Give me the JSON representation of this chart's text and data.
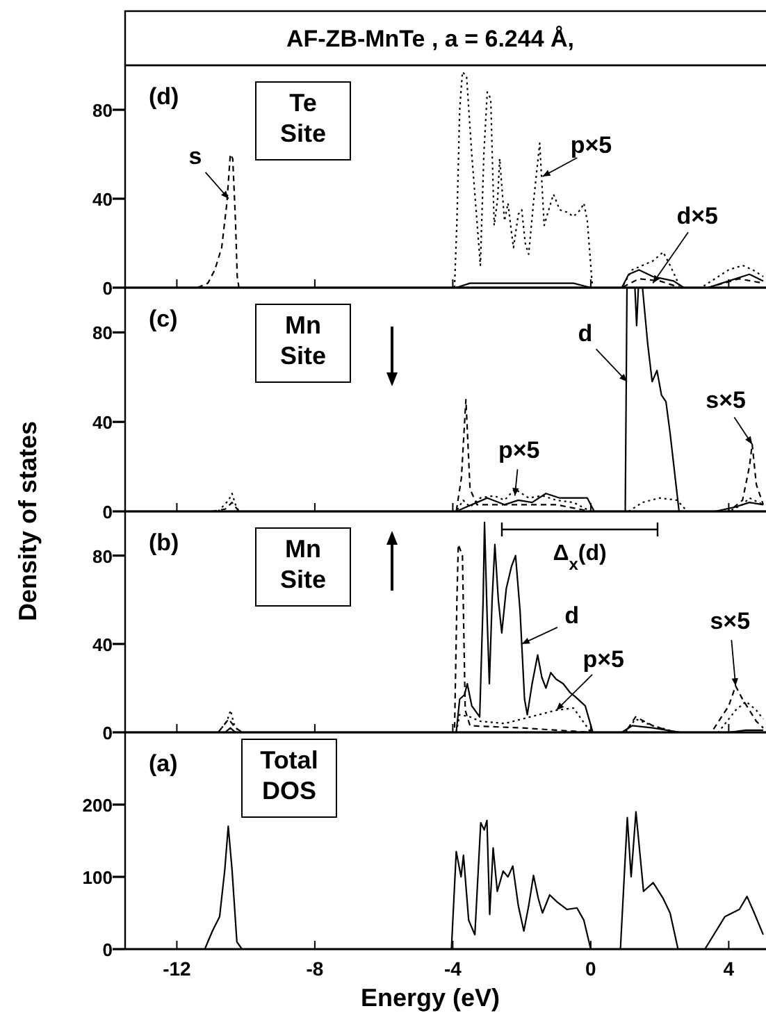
{
  "chart_data": [
    {
      "type": "line",
      "title": "AF-ZB-MnTe , a = 6.244 Å,",
      "xlim": [
        -13.5,
        5
      ],
      "ylim": [
        0,
        100
      ],
      "yticks": [
        0,
        40,
        80
      ],
      "tick_labels": "y",
      "series": [
        {
          "color": "#000000",
          "line_style": "dashed",
          "x": [
            -11.4,
            -11.1,
            -10.9,
            -10.7,
            -10.55,
            -10.45,
            -10.38,
            -10.3,
            -10.25,
            -10.2,
            0.9,
            1.4,
            2.0,
            2.6,
            3.4,
            4.3,
            5.0
          ],
          "values": [
            0,
            2,
            8,
            18,
            38,
            60,
            58,
            30,
            5,
            0,
            0,
            4,
            3,
            0,
            0,
            4,
            2
          ]
        },
        {
          "color": "#000000",
          "line_style": "dotted",
          "x": [
            -3.95,
            -3.88,
            -3.8,
            -3.72,
            -3.6,
            -3.45,
            -3.3,
            -3.2,
            -3.1,
            -3.0,
            -2.9,
            -2.8,
            -2.7,
            -2.64,
            -2.5,
            -2.4,
            -2.3,
            -2.24,
            -2.1,
            -2.0,
            -1.9,
            -1.8,
            -1.65,
            -1.48,
            -1.35,
            -1.2,
            -1.08,
            -0.9,
            -0.7,
            -0.5,
            -0.3,
            -0.2,
            -0.1,
            0.05,
            0.9,
            1.2,
            1.5,
            1.8,
            2.1,
            2.3,
            2.6,
            3.2,
            3.6,
            4.0,
            4.4,
            4.7,
            5.0
          ],
          "values": [
            0,
            30,
            80,
            97,
            95,
            60,
            30,
            10,
            60,
            88,
            85,
            28,
            40,
            58,
            30,
            38,
            25,
            18,
            33,
            35,
            20,
            15,
            40,
            65,
            28,
            36,
            42,
            35,
            34,
            32,
            35,
            38,
            30,
            0,
            0,
            8,
            10,
            12,
            16,
            10,
            0,
            0,
            4,
            8,
            10,
            8,
            5
          ]
        },
        {
          "color": "#000000",
          "line_style": "solid",
          "x": [
            -13.4,
            -3.9,
            -3.5,
            -2,
            -0.5,
            0,
            0.9,
            1.1,
            1.4,
            1.8,
            2.4,
            2.7,
            3.4,
            4.0,
            4.6,
            5.0
          ],
          "values": [
            0,
            0,
            2,
            2,
            2,
            0,
            0,
            6,
            8,
            5,
            3,
            0,
            0,
            3,
            6,
            3
          ]
        }
      ],
      "annotations": [
        "(d)",
        "Te Site",
        {
          "text": "s",
          "x": -10.5,
          "y": 40
        },
        {
          "text": "p×5",
          "x": -1.4,
          "y": 50
        },
        {
          "text": "d×5",
          "x": 1.8,
          "y": 2
        }
      ]
    },
    {
      "type": "line",
      "ylabel": "Density of states",
      "xlim": [
        -13.5,
        5
      ],
      "ylim": [
        0,
        100
      ],
      "yticks": [
        0,
        40,
        80
      ],
      "tick_labels": "y",
      "series": [
        {
          "color": "#000000",
          "line_style": "solid",
          "x": [
            -13.4,
            -3.9,
            -3.6,
            -3.3,
            -3.0,
            -2.5,
            -2.1,
            -1.7,
            -1.3,
            -0.9,
            -0.5,
            -0.1,
            0.1,
            1.0,
            1.05,
            1.28,
            1.33,
            1.38,
            1.5,
            1.65,
            1.78,
            1.92,
            2.05,
            2.18,
            2.3,
            2.56,
            2.8,
            3.6,
            4.2,
            4.6,
            5.0
          ],
          "values": [
            0,
            0,
            2,
            4,
            6,
            3,
            5,
            4,
            8,
            6,
            6,
            6,
            0,
            0,
            100,
            100,
            83,
            100,
            100,
            75,
            58,
            63,
            52,
            49,
            35,
            0,
            0,
            0,
            2,
            4,
            3
          ]
        },
        {
          "color": "#000000",
          "line_style": "dashed",
          "x": [
            -11.0,
            -10.6,
            -10.4,
            -10.2,
            -3.9,
            -3.75,
            -3.62,
            -3.5,
            -3.3,
            -2.5,
            -1.0,
            0,
            4.0,
            4.4,
            4.6,
            4.68,
            4.8,
            5.0
          ],
          "values": [
            0,
            1,
            4,
            0,
            0,
            15,
            50,
            10,
            3,
            3,
            3,
            0,
            0,
            5,
            20,
            30,
            12,
            3
          ]
        },
        {
          "color": "#000000",
          "line_style": "dotted",
          "x": [
            -10.8,
            -10.5,
            -10.4,
            -10.3,
            -10.2,
            -3.9,
            -3.7,
            -3.5,
            -3.2,
            -2.8,
            -2.5,
            -2.2,
            -1.8,
            -1.4,
            -1.0,
            -0.5,
            0,
            1.1,
            1.5,
            2.0,
            2.5,
            2.8,
            4.0,
            4.4,
            4.6,
            5.0
          ],
          "values": [
            0,
            5,
            8,
            3,
            0,
            0,
            5,
            2,
            6,
            7,
            5,
            10,
            6,
            7,
            5,
            4,
            0,
            0,
            4,
            6,
            5,
            0,
            0,
            3,
            6,
            3
          ]
        }
      ],
      "annotations": [
        "(c)",
        "Mn Site",
        {
          "text": "d",
          "x": 1.05,
          "y": 58
        },
        {
          "text": "p×5",
          "x": -2.2,
          "y": 7
        },
        {
          "text": "s×5",
          "x": 4.68,
          "y": 30
        }
      ]
    },
    {
      "type": "line",
      "xlim": [
        -13.5,
        5
      ],
      "ylim": [
        0,
        100
      ],
      "yticks": [
        0,
        40,
        80
      ],
      "tick_labels": "y",
      "series": [
        {
          "color": "#000000",
          "line_style": "solid",
          "x": [
            -13.4,
            -10.6,
            -10.45,
            -10.3,
            -3.9,
            -3.8,
            -3.66,
            -3.58,
            -3.45,
            -3.22,
            -3.12,
            -3.08,
            -3.0,
            -2.94,
            -2.86,
            -2.78,
            -2.68,
            -2.58,
            -2.45,
            -2.3,
            -2.18,
            -2.05,
            -1.92,
            -1.84,
            -1.7,
            -1.54,
            -1.42,
            -1.3,
            -1.16,
            -1.0,
            -0.8,
            -0.6,
            -0.44,
            -0.16,
            0.06,
            0.9,
            1.2,
            1.8,
            2.6,
            4.0,
            4.5,
            5.0
          ],
          "values": [
            0,
            0,
            2,
            0,
            0,
            15,
            17,
            22,
            12,
            7,
            60,
            95,
            50,
            22,
            60,
            85,
            60,
            45,
            65,
            75,
            80,
            55,
            15,
            8,
            22,
            35,
            25,
            20,
            27,
            24,
            22,
            18,
            16,
            12,
            0,
            0,
            3,
            2,
            0,
            0,
            1,
            1
          ]
        },
        {
          "color": "#000000",
          "line_style": "dashed",
          "x": [
            -10.8,
            -10.5,
            -10.3,
            -10.1,
            -3.95,
            -3.88,
            -3.84,
            -3.72,
            -3.64,
            -3.5,
            -2.0,
            0,
            1.0,
            1.3,
            1.8,
            2.4,
            3.5,
            4.0,
            4.2,
            4.4,
            4.8,
            5.0
          ],
          "values": [
            0,
            6,
            2,
            0,
            0,
            60,
            85,
            80,
            10,
            3,
            2,
            0,
            0,
            7,
            3,
            0,
            0,
            12,
            21,
            15,
            5,
            2
          ]
        },
        {
          "color": "#000000",
          "line_style": "dotted",
          "x": [
            -10.8,
            -10.55,
            -10.44,
            -10.35,
            -10.2,
            -3.9,
            -3.8,
            -3.5,
            -3.2,
            -2.5,
            -2.0,
            -1.5,
            -1.0,
            -0.5,
            0,
            1.0,
            1.3,
            1.8,
            2.5,
            3.7,
            4.2,
            4.5,
            4.8,
            5.0
          ],
          "values": [
            0,
            5,
            10,
            4,
            0,
            0,
            8,
            7,
            5,
            4,
            6,
            8,
            10,
            11,
            0,
            0,
            6,
            3,
            0,
            0,
            10,
            14,
            10,
            6
          ]
        }
      ],
      "annotations": [
        "(b)",
        "Mn Site",
        "Δ$_{x}$(d)",
        {
          "text": "d",
          "x": -2.0,
          "y": 40
        },
        {
          "text": "p×5",
          "x": -1.0,
          "y": 10
        },
        {
          "text": "s×5",
          "x": 4.2,
          "y": 21
        }
      ]
    },
    {
      "type": "line",
      "xlabel": "Energy (eV)",
      "xlim": [
        -13.5,
        5
      ],
      "xticks": [
        -12,
        -8,
        -4,
        0,
        4
      ],
      "ylim": [
        0,
        300
      ],
      "yticks": [
        0,
        100,
        200
      ],
      "series": [
        {
          "color": "#000000",
          "line_style": "solid",
          "x": [
            -13.4,
            -11.19,
            -10.97,
            -10.76,
            -10.61,
            -10.51,
            -10.4,
            -10.26,
            -10.11,
            -4.04,
            -3.9,
            -3.76,
            -3.69,
            -3.54,
            -3.36,
            -3.19,
            -3.09,
            -3.01,
            -2.93,
            -2.83,
            -2.71,
            -2.54,
            -2.4,
            -2.26,
            -2.1,
            -1.94,
            -1.8,
            -1.66,
            -1.52,
            -1.4,
            -1.19,
            -0.97,
            -0.69,
            -0.4,
            -0.2,
            0.0,
            0.86,
            1.06,
            1.17,
            1.31,
            1.53,
            1.81,
            2.1,
            2.3,
            2.53,
            3.31,
            3.89,
            4.31,
            4.53,
            4.74,
            5.0
          ],
          "values": [
            0,
            0,
            25,
            45,
            110,
            170,
            110,
            10,
            0,
            0,
            135,
            100,
            130,
            40,
            20,
            175,
            165,
            178,
            48,
            140,
            80,
            108,
            100,
            115,
            60,
            25,
            60,
            102,
            70,
            50,
            75,
            65,
            55,
            57,
            40,
            0,
            0,
            182,
            100,
            190,
            80,
            92,
            70,
            50,
            0,
            0,
            45,
            55,
            73,
            50,
            20
          ]
        }
      ],
      "annotations": [
        "(a)",
        "Total DOS"
      ]
    }
  ]
}
